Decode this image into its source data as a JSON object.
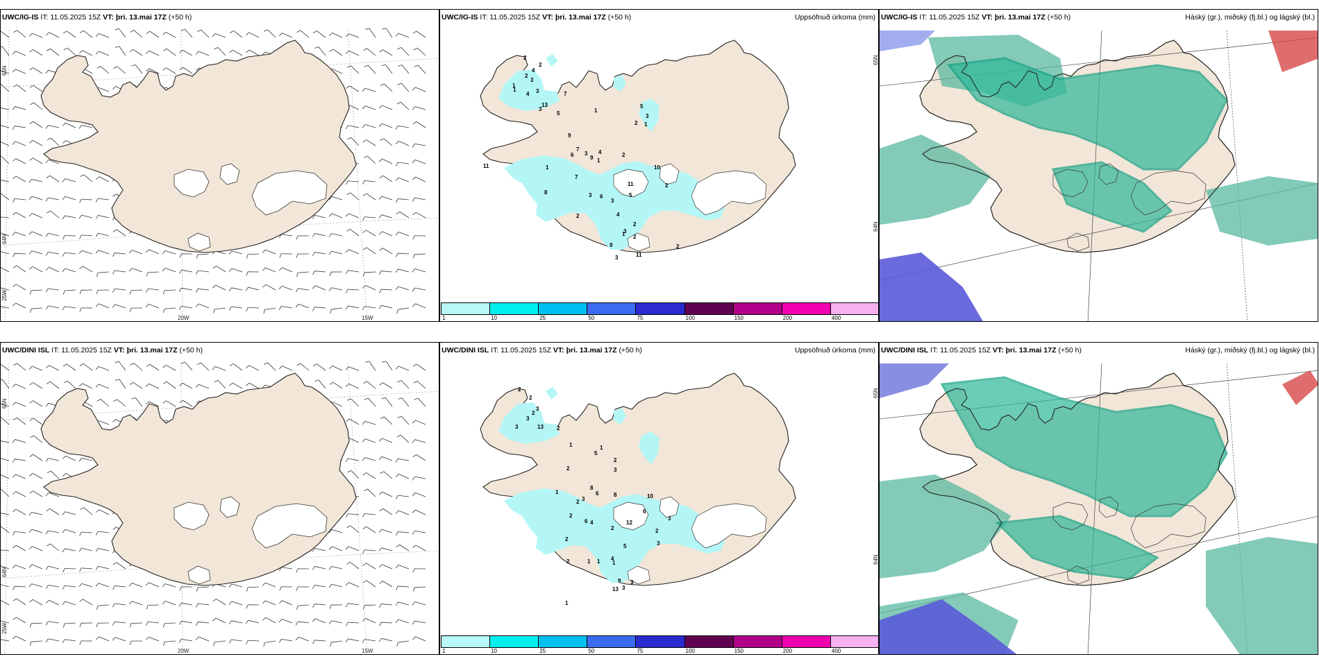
{
  "rows": [
    {
      "model": "UWC/IG-IS",
      "it": "IT: 11.05.2025 15Z",
      "vt_label": "VT:",
      "vt": "þri. 13.mai 17Z",
      "lead": "(+50 h)",
      "lat_labels": [
        "65N",
        "64N"
      ],
      "lon_labels": [
        "25W",
        "20W",
        "15W"
      ]
    },
    {
      "model": "UWC/DINI ISL",
      "it": "IT: 11.05.2025 15Z",
      "vt_label": "VT:",
      "vt": "þri. 13.mai 17Z",
      "lead": "(+50 h)",
      "lat_labels": [
        "65N",
        "64N"
      ],
      "lon_labels": [
        "25W",
        "20W",
        "15W"
      ]
    }
  ],
  "precip_title": "Uppsöfnuð úrkoma (mm)",
  "cloud_title": "Háský (gr.), miðský (fj.bl.) og lágský (bl.)",
  "legend": {
    "ticks": [
      "1",
      "10",
      "25",
      "50",
      "75",
      "100",
      "150",
      "200",
      "400"
    ],
    "colors": [
      "#b8f8f8",
      "#00f0f0",
      "#00c0f0",
      "#3a6cf0",
      "#2a2ad0",
      "#600050",
      "#b0008a",
      "#f000b0",
      "#f8b0f0"
    ]
  },
  "precip_numbers_top": [
    "2",
    "2",
    "4",
    "1",
    "2",
    "3",
    "4",
    "13",
    "3",
    "7",
    "1",
    "3",
    "5",
    "1",
    "4",
    "2",
    "3",
    "5",
    "1",
    "2",
    "9",
    "1",
    "6",
    "7",
    "3",
    "11",
    "1",
    "10",
    "8",
    "7",
    "9",
    "11",
    "2",
    "3",
    "5",
    "6",
    "3",
    "4",
    "2",
    "3",
    "2",
    "9",
    "2",
    "1",
    "2",
    "3",
    "11"
  ],
  "precip_numbers_bottom": [
    "2",
    "2",
    "3",
    "2",
    "3",
    "13",
    "2",
    "3",
    "1",
    "5",
    "1",
    "2",
    "3",
    "2",
    "8",
    "6",
    "1",
    "2",
    "3",
    "8",
    "10",
    "6",
    "4",
    "12",
    "3",
    "2",
    "2",
    "6",
    "5",
    "4",
    "3",
    "2",
    "9",
    "3",
    "1",
    "1",
    "1",
    "2",
    "2",
    "13",
    "1",
    "3"
  ],
  "colors": {
    "land": "#f2e6d8",
    "precip": "#b4f6f6",
    "cloud_low": "#5ab8a0",
    "cloud_mid": "#2eb89a",
    "cloud_high": "#5a5ad8",
    "cloud_red": "#d84848"
  }
}
